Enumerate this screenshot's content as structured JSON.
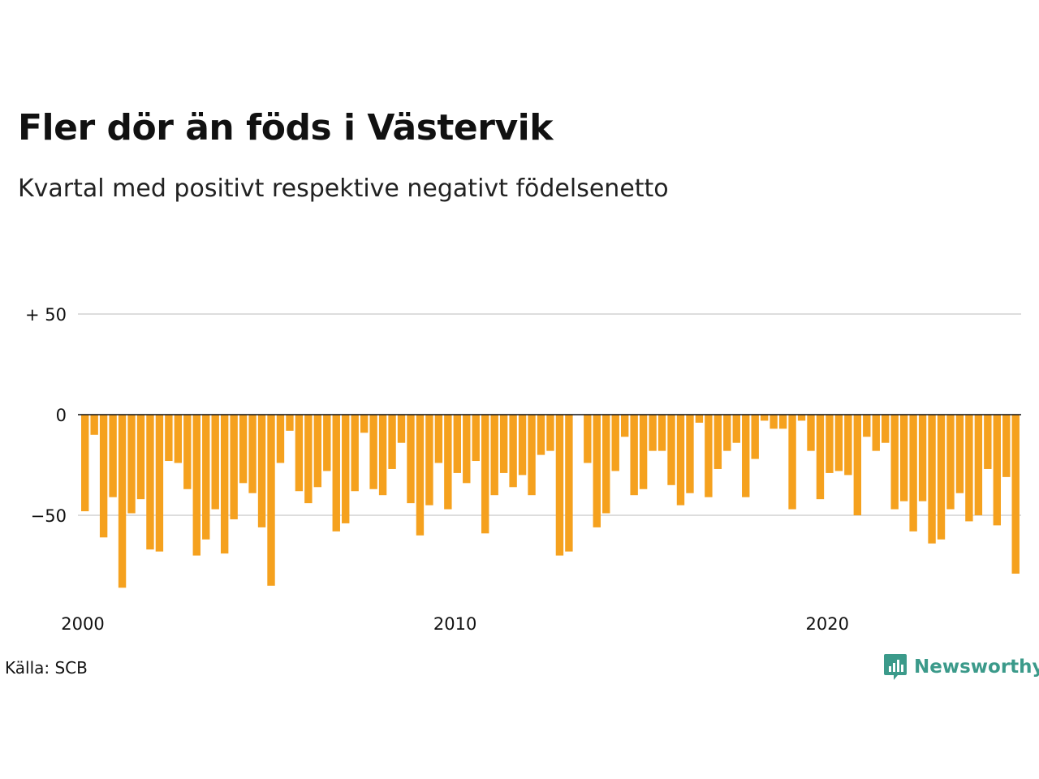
{
  "title": "Fler dör än föds i Västervik",
  "subtitle": "Kvartal med positivt respektive negativt födelsenetto",
  "source": "Källa: SCB",
  "brand": {
    "name": "Newsworthy",
    "icon": "newsworthy-logo-icon",
    "color": "#3b9a8a"
  },
  "colors": {
    "negative": "#f5a11e",
    "gridline": "#dddddd",
    "zeroline": "#111111"
  },
  "chart_data": {
    "type": "bar",
    "title": "Fler dör än föds i Västervik",
    "subtitle": "Kvartal med positivt respektive negativt födelsenetto",
    "xlabel": "",
    "ylabel": "",
    "x_start": "2000 Q1",
    "frequency": "quarterly",
    "ylim": [
      -88,
      55
    ],
    "y_ticks": [
      {
        "value": 50,
        "label": "+ 50"
      },
      {
        "value": 0,
        "label": "0"
      },
      {
        "value": -50,
        "label": "−50"
      }
    ],
    "x_ticks": [
      {
        "label": "2000",
        "index": 0
      },
      {
        "label": "2010",
        "index": 40
      },
      {
        "label": "2020",
        "index": 80
      }
    ],
    "grid": true,
    "legend": "none",
    "values": [
      -48,
      -10,
      -61,
      -41,
      -86,
      -49,
      -42,
      -67,
      -68,
      -23,
      -24,
      -37,
      -70,
      -62,
      -47,
      -69,
      -52,
      -34,
      -39,
      -56,
      -85,
      -24,
      -8,
      -38,
      -44,
      -36,
      -28,
      -58,
      -54,
      -38,
      -9,
      -37,
      -40,
      -27,
      -14,
      -44,
      -60,
      -45,
      -24,
      -47,
      -29,
      -34,
      -23,
      -59,
      -40,
      -29,
      -36,
      -30,
      -40,
      -20,
      -18,
      -70,
      -68,
      0,
      -24,
      -56,
      -49,
      -28,
      -11,
      -40,
      -37,
      -18,
      -18,
      -35,
      -45,
      -39,
      -4,
      -41,
      -27,
      -18,
      -14,
      -41,
      -22,
      -3,
      -7,
      -7,
      -47,
      -3,
      -18,
      -42,
      -29,
      -28,
      -30,
      -50,
      -11,
      -18,
      -14,
      -47,
      -43,
      -58,
      -43,
      -64,
      -62,
      -47,
      -39,
      -53,
      -50,
      -27,
      -55,
      -31,
      -79
    ]
  }
}
